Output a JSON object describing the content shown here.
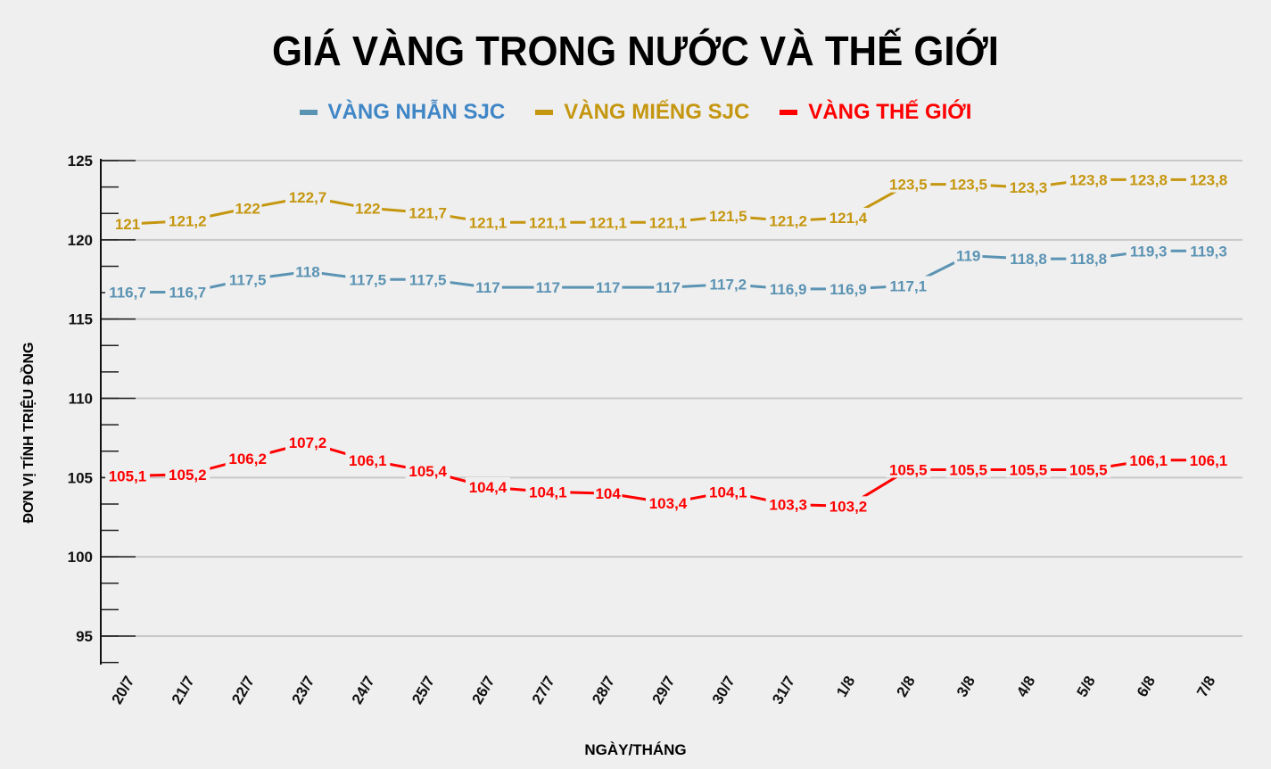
{
  "title": "GIÁ VÀNG TRONG NƯỚC VÀ THẾ GIỚI",
  "legend": [
    {
      "label": "VÀNG NHẪN SJC",
      "color": "#5b93b3",
      "text_color": "#3f86c6"
    },
    {
      "label": "VÀNG MIẾNG SJC",
      "color": "#c5960f",
      "text_color": "#c5960f"
    },
    {
      "label": "VÀNG THẾ GIỚI",
      "color": "#ff0000",
      "text_color": "#ff0000"
    }
  ],
  "axes": {
    "ylabel": "ĐƠN VỊ TÍNH TRIỆU ĐỒNG",
    "xlabel": "NGÀY/THÁNG"
  },
  "chart_data": {
    "type": "line",
    "title": "GIÁ VÀNG TRONG NƯỚC VÀ THẾ GIỚI",
    "xlabel": "NGÀY/THÁNG",
    "ylabel": "ĐƠN VỊ TÍNH TRIỆU ĐỒNG",
    "ylim": [
      93.3,
      125
    ],
    "yticks": [
      95,
      100,
      105,
      110,
      115,
      120,
      125
    ],
    "grid": true,
    "legend_position": "top",
    "categories": [
      "20/7",
      "21/7",
      "22/7",
      "23/7",
      "24/7",
      "25/7",
      "26/7",
      "27/7",
      "28/7",
      "29/7",
      "30/7",
      "31/7",
      "1/8",
      "2/8",
      "3/8",
      "4/8",
      "5/8",
      "6/8",
      "7/8"
    ],
    "series": [
      {
        "name": "VÀNG NHẪN SJC",
        "color": "#5b93b3",
        "values": [
          116.7,
          116.7,
          117.5,
          118,
          117.5,
          117.5,
          117,
          117,
          117,
          117,
          117.2,
          116.9,
          116.9,
          117.1,
          119,
          118.8,
          118.8,
          119.3,
          119.3
        ],
        "labels": [
          "116,7",
          "116,7",
          "117,5",
          "118",
          "117,5",
          "117,5",
          "117",
          "117",
          "117",
          "117",
          "117,2",
          "116,9",
          "116,9",
          "117,1",
          "119",
          "118,8",
          "118,8",
          "119,3",
          "119,3"
        ]
      },
      {
        "name": "VÀNG MIẾNG SJC",
        "color": "#c5960f",
        "values": [
          121,
          121.2,
          122,
          122.7,
          122,
          121.7,
          121.1,
          121.1,
          121.1,
          121.1,
          121.5,
          121.2,
          121.4,
          123.5,
          123.5,
          123.3,
          123.8,
          123.8,
          123.8
        ],
        "labels": [
          "121",
          "121,2",
          "122",
          "122,7",
          "122",
          "121,7",
          "121,1",
          "121,1",
          "121,1",
          "121,1",
          "121,5",
          "121,2",
          "121,4",
          "123,5",
          "123,5",
          "123,3",
          "123,8",
          "123,8",
          "123,8"
        ]
      },
      {
        "name": "VÀNG THẾ GIỚI",
        "color": "#ff0000",
        "values": [
          105.1,
          105.2,
          106.2,
          107.2,
          106.1,
          105.4,
          104.4,
          104.1,
          104,
          103.4,
          104.1,
          103.3,
          103.2,
          105.5,
          105.5,
          105.5,
          105.5,
          106.1,
          106.1
        ],
        "labels": [
          "105,1",
          "105,2",
          "106,2",
          "107,2",
          "106,1",
          "105,4",
          "104,4",
          "104,1",
          "104",
          "103,4",
          "104,1",
          "103,3",
          "103,2",
          "105,5",
          "105,5",
          "105,5",
          "105,5",
          "106,1",
          "106,1"
        ]
      }
    ]
  }
}
